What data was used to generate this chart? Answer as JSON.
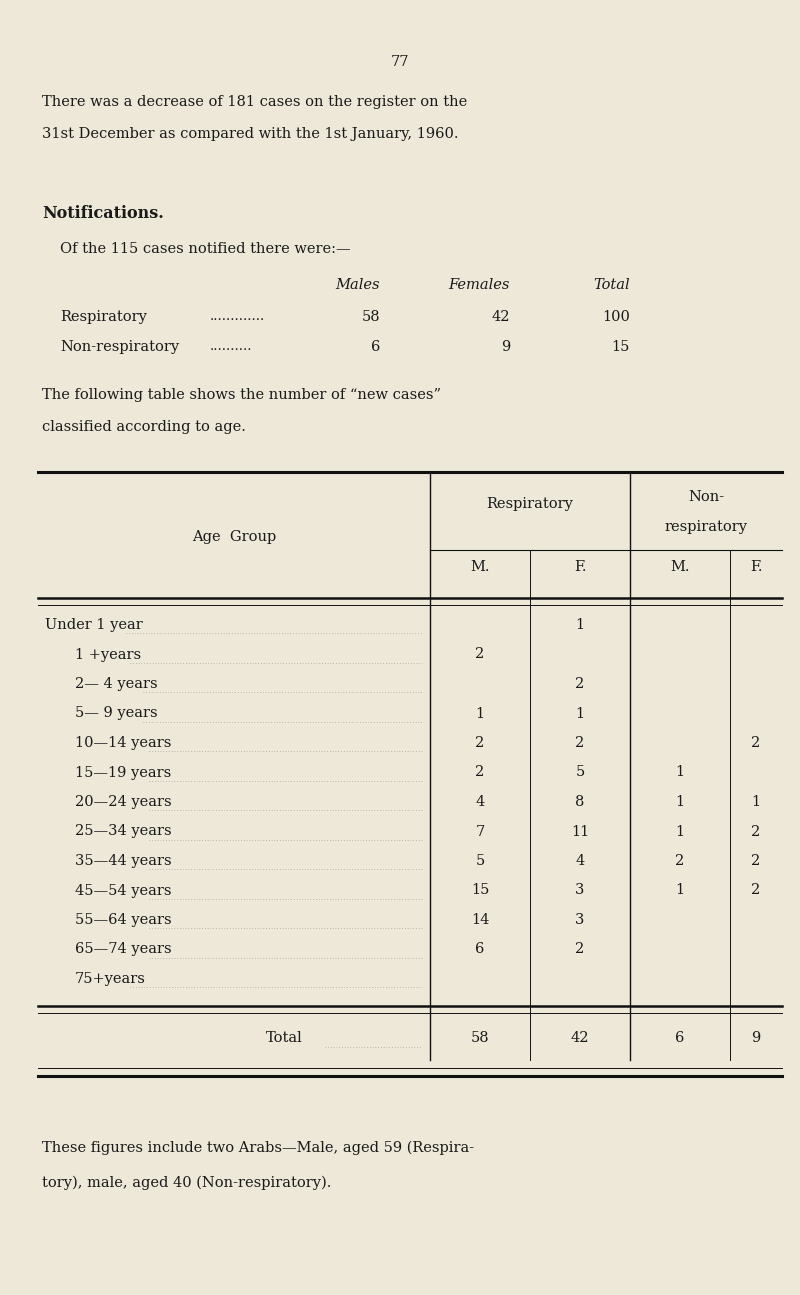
{
  "bg_color": "#ede8d8",
  "page_number": "77",
  "intro_line1": "There was a decrease of 181 cases on the register on the",
  "intro_line2": "31st December as compared with the 1st January, 1960.",
  "notifications_header": "Notifications.",
  "notifications_intro": "Of the 115 cases notified there were:—",
  "notif_col_headers": [
    "Males",
    "Females",
    "Total"
  ],
  "notif_rows": [
    [
      "Respiratory",
      ".............",
      "58",
      "42",
      "100"
    ],
    [
      "Non-respiratory",
      "..........",
      "6",
      "9",
      "15"
    ]
  ],
  "table_intro_line1": "The following table shows the number of “new cases”",
  "table_intro_line2": "classified according to age.",
  "table_col_header1": "Respiratory",
  "table_col_header2a": "Non-",
  "table_col_header2b": "respiratory",
  "table_age_col": "Age  Group",
  "table_subheaders": [
    "M.",
    "F.",
    "M.",
    "F."
  ],
  "age_rows": [
    [
      "Under 1 year",
      "",
      "1",
      "",
      ""
    ],
    [
      "1 +years",
      "2",
      "",
      "",
      ""
    ],
    [
      "2— 4 years",
      "",
      "2",
      "",
      ""
    ],
    [
      "5— 9 years",
      "1",
      "1",
      "",
      ""
    ],
    [
      "10—14 years",
      "2",
      "2",
      "",
      "2"
    ],
    [
      "15—19 years",
      "2",
      "5",
      "1",
      ""
    ],
    [
      "20—24 years",
      "4",
      "8",
      "1",
      "1"
    ],
    [
      "25—34 years",
      "7",
      "11",
      "1",
      "2"
    ],
    [
      "35—44 years",
      "5",
      "4",
      "2",
      "2"
    ],
    [
      "45—54 years",
      "15",
      "3",
      "1",
      "2"
    ],
    [
      "55—64 years",
      "14",
      "3",
      "",
      ""
    ],
    [
      "65—74 years",
      "6",
      "2",
      "",
      ""
    ],
    [
      "75+years",
      "",
      "",
      "",
      ""
    ]
  ],
  "total_label": "Total",
  "total_values": [
    "58",
    "42",
    "6",
    "9"
  ],
  "footnote_line1": "These figures include two Arabs—Male, aged 59 (Respira-",
  "footnote_line2": "tory), male, aged 40 (Non-respiratory)."
}
